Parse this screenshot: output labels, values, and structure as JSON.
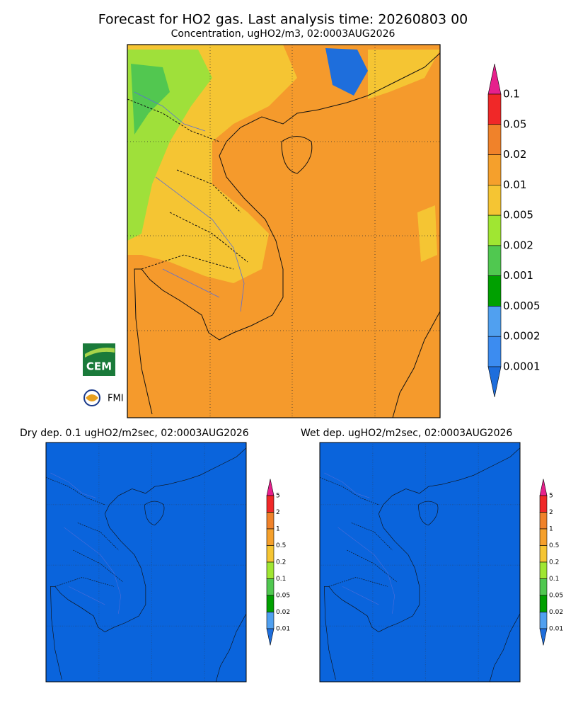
{
  "header": {
    "title": "Forecast for HO2 gas. Last analysis time: 20260803 00",
    "subtitle": "Concentration, ugHO2/m3, 02:0003AUG2026"
  },
  "main_colorbar": {
    "labels": [
      "0.1",
      "0.05",
      "0.02",
      "0.01",
      "0.005",
      "0.002",
      "0.001",
      "0.0005",
      "0.0002",
      "0.0001"
    ]
  },
  "dry_panel": {
    "title": "Dry dep. 0.1 ugHO2/m2sec, 02:0003AUG2026",
    "colorbar": {
      "labels": [
        "5",
        "2",
        "1",
        "0.5",
        "0.2",
        "0.1",
        "0.05",
        "0.02",
        "0.01"
      ]
    }
  },
  "wet_panel": {
    "title": "Wet dep. ugHO2/m2sec, 02:0003AUG2026",
    "colorbar": {
      "labels": [
        "5",
        "2",
        "1",
        "0.5",
        "0.2",
        "0.1",
        "0.05",
        "0.02",
        "0.01"
      ]
    }
  },
  "logos": {
    "cem": "CEM",
    "fmi": "FMI"
  }
}
